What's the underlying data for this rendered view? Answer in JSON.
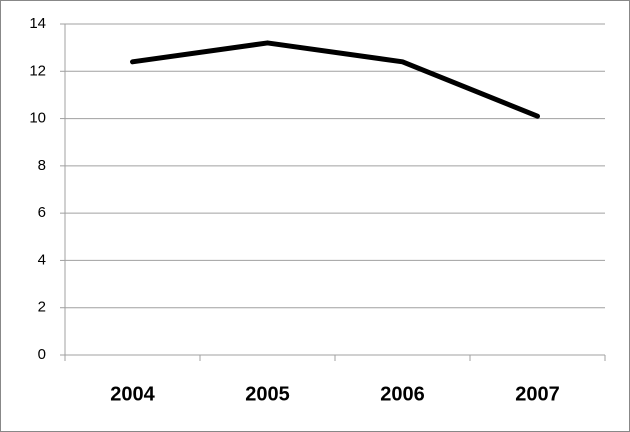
{
  "chart_data": {
    "type": "line",
    "categories": [
      "2004",
      "2005",
      "2006",
      "2007"
    ],
    "values": [
      12.4,
      13.2,
      12.4,
      10.1
    ],
    "color": "#000000",
    "ylim": [
      0,
      14
    ],
    "yticks": [
      0,
      2,
      4,
      6,
      8,
      10,
      12,
      14
    ],
    "grid": true
  }
}
